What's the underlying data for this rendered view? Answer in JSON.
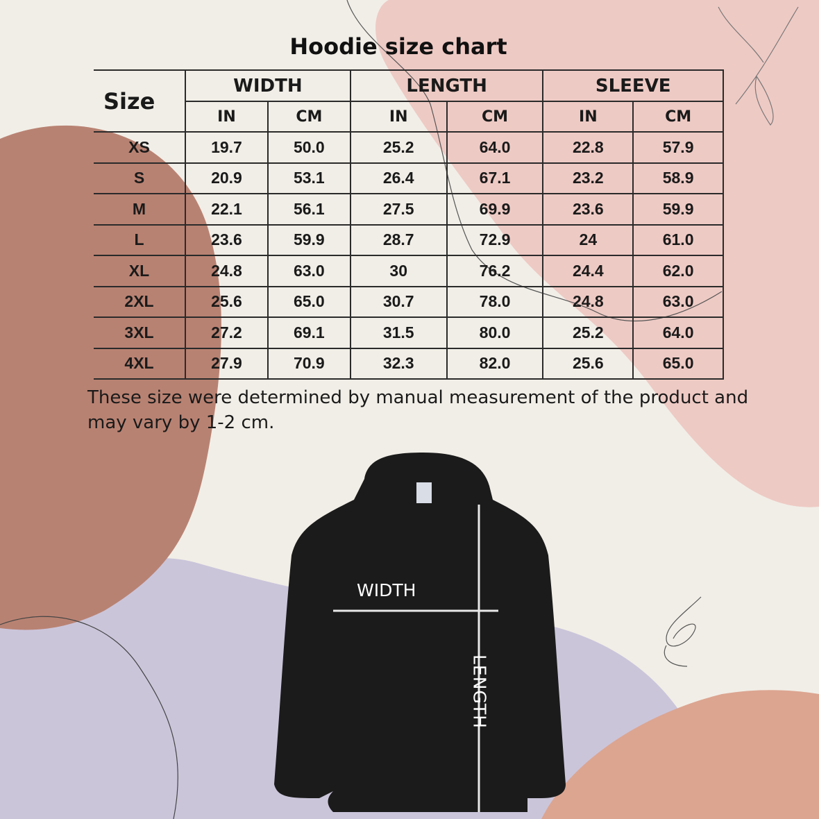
{
  "title": "Hoodie size chart",
  "table": {
    "size_header": "Size",
    "groups": [
      "WIDTH",
      "LENGTH",
      "SLEEVE"
    ],
    "units": [
      "IN",
      "CM",
      "IN",
      "CM",
      "IN",
      "CM"
    ],
    "rows": [
      [
        "XS",
        "19.7",
        "50.0",
        "25.2",
        "64.0",
        "22.8",
        "57.9"
      ],
      [
        "S",
        "20.9",
        "53.1",
        "26.4",
        "67.1",
        "23.2",
        "58.9"
      ],
      [
        "M",
        "22.1",
        "56.1",
        "27.5",
        "69.9",
        "23.6",
        "59.9"
      ],
      [
        "L",
        "23.6",
        "59.9",
        "28.7",
        "72.9",
        "24",
        "61.0"
      ],
      [
        "XL",
        "24.8",
        "63.0",
        "30",
        "76.2",
        "24.4",
        "62.0"
      ],
      [
        "2XL",
        "25.6",
        "65.0",
        "30.7",
        "78.0",
        "24.8",
        "63.0"
      ],
      [
        "3XL",
        "27.2",
        "69.1",
        "31.5",
        "80.0",
        "25.2",
        "64.0"
      ],
      [
        "4XL",
        "27.9",
        "70.9",
        "32.3",
        "82.0",
        "25.6",
        "65.0"
      ]
    ]
  },
  "note": "These size were determined by manual measurement of the product and may vary by 1-2 cm.",
  "diagram": {
    "width_label": "WIDTH",
    "length_label": "LENGTH"
  },
  "colors": {
    "background": "#f1eee7",
    "brown_blob": "#b88272",
    "pink_blob": "#eecac4",
    "lavender_blob": "#cbc5da",
    "peach_blob": "#dca590",
    "hoodie": "#1b1b1b"
  }
}
